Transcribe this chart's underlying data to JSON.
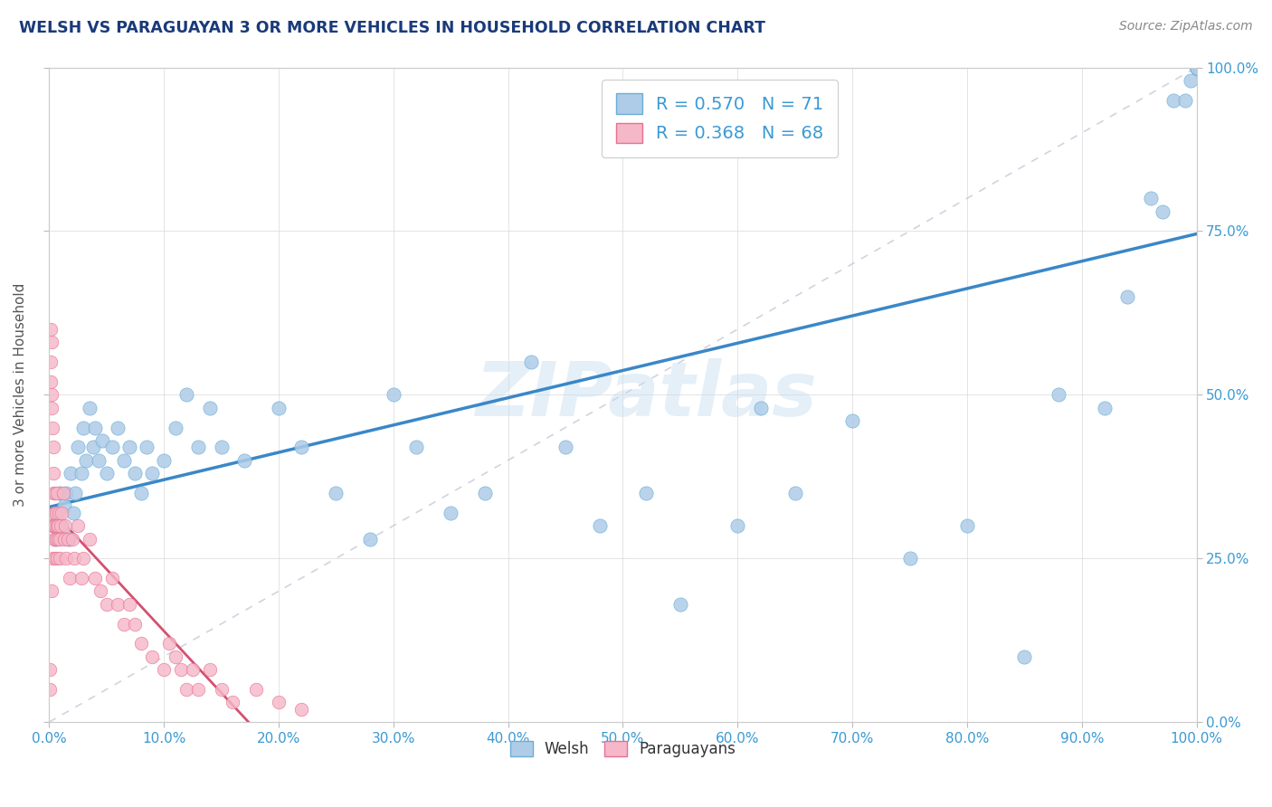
{
  "title": "WELSH VS PARAGUAYAN 3 OR MORE VEHICLES IN HOUSEHOLD CORRELATION CHART",
  "source": "Source: ZipAtlas.com",
  "ylabel": "3 or more Vehicles in Household",
  "welsh_R": 0.57,
  "welsh_N": 71,
  "paraguayan_R": 0.368,
  "paraguayan_N": 68,
  "welsh_color": "#aecce8",
  "welsh_edge_color": "#6aaed6",
  "welsh_line_color": "#3a87c8",
  "paraguayan_color": "#f5b8c8",
  "paraguayan_edge_color": "#e87090",
  "paraguayan_line_color": "#d45070",
  "identity_line_color": "#c8c8d8",
  "watermark": "ZIPatlas",
  "title_color": "#1a3a7a",
  "source_color": "#888888",
  "axis_label_color": "#555555",
  "tick_color": "#3a9ad4",
  "legend_r_color": "#3a9ad4",
  "background_color": "#ffffff",
  "grid_color": "#d8d8d8",
  "welsh_x": [
    0.3,
    0.5,
    0.7,
    0.9,
    1.1,
    1.3,
    1.5,
    1.7,
    1.9,
    2.1,
    2.3,
    2.5,
    2.8,
    3.0,
    3.2,
    3.5,
    3.8,
    4.0,
    4.3,
    4.6,
    5.0,
    5.5,
    6.0,
    6.5,
    7.0,
    7.5,
    8.0,
    8.5,
    9.0,
    10.0,
    11.0,
    12.0,
    13.0,
    14.0,
    15.0,
    17.0,
    20.0,
    22.0,
    25.0,
    28.0,
    30.0,
    32.0,
    35.0,
    38.0,
    42.0,
    45.0,
    48.0,
    52.0,
    55.0,
    60.0,
    62.0,
    65.0,
    70.0,
    75.0,
    80.0,
    85.0,
    88.0,
    92.0,
    94.0,
    96.0,
    97.0,
    98.0,
    99.0,
    99.5,
    100.0,
    100.0,
    100.0,
    100.0,
    100.0,
    100.0,
    100.0
  ],
  "welsh_y": [
    30.0,
    28.0,
    32.0,
    35.0,
    30.0,
    33.0,
    35.0,
    28.0,
    38.0,
    32.0,
    35.0,
    42.0,
    38.0,
    45.0,
    40.0,
    48.0,
    42.0,
    45.0,
    40.0,
    43.0,
    38.0,
    42.0,
    45.0,
    40.0,
    42.0,
    38.0,
    35.0,
    42.0,
    38.0,
    40.0,
    45.0,
    50.0,
    42.0,
    48.0,
    42.0,
    40.0,
    48.0,
    42.0,
    35.0,
    28.0,
    50.0,
    42.0,
    32.0,
    35.0,
    55.0,
    42.0,
    30.0,
    35.0,
    18.0,
    30.0,
    48.0,
    35.0,
    46.0,
    25.0,
    30.0,
    10.0,
    50.0,
    48.0,
    65.0,
    80.0,
    78.0,
    95.0,
    95.0,
    98.0,
    100.0,
    100.0,
    100.0,
    100.0,
    100.0,
    100.0,
    100.0
  ],
  "paraguayan_x": [
    0.05,
    0.08,
    0.1,
    0.12,
    0.15,
    0.18,
    0.2,
    0.22,
    0.25,
    0.28,
    0.3,
    0.32,
    0.35,
    0.38,
    0.4,
    0.42,
    0.45,
    0.48,
    0.5,
    0.52,
    0.55,
    0.58,
    0.6,
    0.65,
    0.7,
    0.72,
    0.75,
    0.8,
    0.85,
    0.9,
    0.95,
    1.0,
    1.1,
    1.2,
    1.3,
    1.4,
    1.5,
    1.6,
    1.8,
    2.0,
    2.2,
    2.5,
    2.8,
    3.0,
    3.5,
    4.0,
    4.5,
    5.0,
    5.5,
    6.0,
    6.5,
    7.0,
    7.5,
    8.0,
    9.0,
    10.0,
    10.5,
    11.0,
    11.5,
    12.0,
    12.5,
    13.0,
    14.0,
    15.0,
    16.0,
    18.0,
    20.0,
    22.0
  ],
  "paraguayan_y": [
    5.0,
    8.0,
    55.0,
    60.0,
    52.0,
    58.0,
    48.0,
    50.0,
    20.0,
    30.0,
    45.0,
    25.0,
    38.0,
    42.0,
    35.0,
    30.0,
    28.0,
    32.0,
    35.0,
    25.0,
    30.0,
    28.0,
    32.0,
    25.0,
    30.0,
    35.0,
    28.0,
    30.0,
    32.0,
    25.0,
    28.0,
    30.0,
    32.0,
    35.0,
    28.0,
    30.0,
    25.0,
    28.0,
    22.0,
    28.0,
    25.0,
    30.0,
    22.0,
    25.0,
    28.0,
    22.0,
    20.0,
    18.0,
    22.0,
    18.0,
    15.0,
    18.0,
    15.0,
    12.0,
    10.0,
    8.0,
    12.0,
    10.0,
    8.0,
    5.0,
    8.0,
    5.0,
    8.0,
    5.0,
    3.0,
    5.0,
    3.0,
    2.0
  ]
}
